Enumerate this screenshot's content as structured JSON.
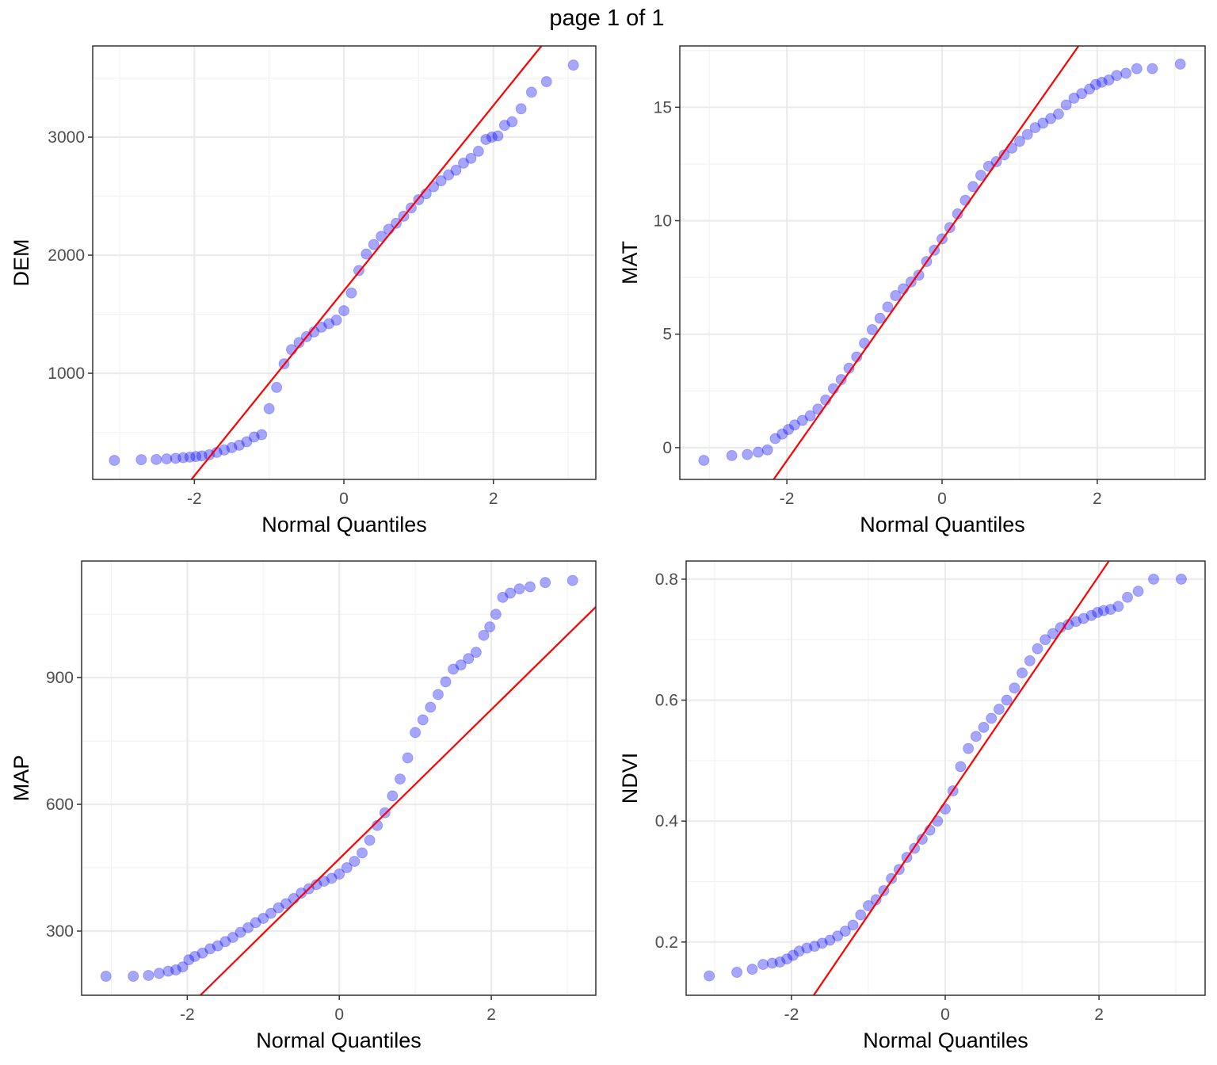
{
  "page_title": "page 1 of 1",
  "point_color": "#0000ff",
  "line_color": "#ff0000",
  "x_quantiles": [
    -3.07,
    -2.71,
    -2.51,
    -2.37,
    -2.25,
    -2.15,
    -2.06,
    -1.98,
    -1.9,
    -1.8,
    -1.7,
    -1.6,
    -1.5,
    -1.4,
    -1.3,
    -1.2,
    -1.1,
    -1.0,
    -0.9,
    -0.8,
    -0.7,
    -0.6,
    -0.5,
    -0.4,
    -0.3,
    -0.2,
    -0.1,
    0,
    0.1,
    0.2,
    0.3,
    0.4,
    0.5,
    0.6,
    0.7,
    0.8,
    0.9,
    1.0,
    1.1,
    1.2,
    1.3,
    1.4,
    1.5,
    1.6,
    1.7,
    1.8,
    1.9,
    1.98,
    2.06,
    2.15,
    2.25,
    2.37,
    2.51,
    2.71,
    3.07
  ],
  "chart_data": [
    {
      "type": "scatter",
      "xlabel": "Normal Quantiles",
      "ylabel": "DEM",
      "xlim": [
        -3.36,
        3.37
      ],
      "ylim": [
        101,
        3772
      ],
      "xticks": [
        "-2",
        "0",
        "2"
      ],
      "xtick_values": [
        -2,
        0,
        2
      ],
      "yticks": [
        "1000",
        "2000",
        "3000"
      ],
      "ytick_values": [
        1000,
        2000,
        3000
      ],
      "grid": true,
      "reference_line": {
        "intercept": 1700,
        "slope": 784
      },
      "y": [
        262,
        268,
        270,
        275,
        280,
        285,
        290,
        295,
        300,
        310,
        330,
        350,
        370,
        390,
        420,
        460,
        480,
        700,
        880,
        1080,
        1200,
        1260,
        1310,
        1350,
        1390,
        1420,
        1450,
        1530,
        1680,
        1870,
        2010,
        2090,
        2160,
        2220,
        2270,
        2330,
        2400,
        2470,
        2520,
        2580,
        2630,
        2680,
        2720,
        2780,
        2820,
        2880,
        2980,
        3000,
        3010,
        3100,
        3130,
        3240,
        3380,
        3470,
        3610
      ]
    },
    {
      "type": "scatter",
      "xlabel": "Normal Quantiles",
      "ylabel": "MAT",
      "xlim": [
        -3.38,
        3.39
      ],
      "ylim": [
        -1.4,
        17.7
      ],
      "xticks": [
        "-2",
        "0",
        "2"
      ],
      "xtick_values": [
        -2,
        0,
        2
      ],
      "yticks": [
        "0",
        "5",
        "10",
        "15"
      ],
      "ytick_values": [
        0,
        5,
        10,
        15
      ],
      "grid": true,
      "reference_line": {
        "intercept": 9.15,
        "slope": 4.86
      },
      "y": [
        -0.56,
        -0.35,
        -0.3,
        -0.2,
        -0.1,
        0.4,
        0.6,
        0.8,
        1.0,
        1.2,
        1.4,
        1.7,
        2.1,
        2.6,
        3.0,
        3.5,
        4.0,
        4.6,
        5.2,
        5.7,
        6.2,
        6.7,
        7.0,
        7.3,
        7.6,
        8.2,
        8.7,
        9.2,
        9.7,
        10.3,
        10.9,
        11.5,
        12.0,
        12.4,
        12.6,
        12.9,
        13.2,
        13.5,
        13.8,
        14.1,
        14.3,
        14.5,
        14.7,
        15.1,
        15.4,
        15.6,
        15.8,
        16.0,
        16.1,
        16.2,
        16.4,
        16.5,
        16.7,
        16.7,
        16.9
      ]
    },
    {
      "type": "scatter",
      "xlabel": "Normal Quantiles",
      "ylabel": "MAP",
      "xlim": [
        -3.39,
        3.375
      ],
      "ylim": [
        148,
        1176
      ],
      "xticks": [
        "-2",
        "0",
        "2"
      ],
      "xtick_values": [
        -2,
        0,
        2
      ],
      "yticks": [
        "300",
        "600",
        "900"
      ],
      "ytick_values": [
        300,
        600,
        900
      ],
      "grid": true,
      "reference_line": {
        "intercept": 471,
        "slope": 176.7
      },
      "y": [
        193,
        193,
        195,
        200,
        205,
        208,
        215,
        232,
        240,
        248,
        258,
        265,
        275,
        285,
        297,
        308,
        320,
        330,
        342,
        355,
        365,
        377,
        390,
        400,
        410,
        418,
        425,
        435,
        450,
        465,
        485,
        515,
        550,
        580,
        620,
        660,
        710,
        770,
        800,
        830,
        860,
        890,
        920,
        930,
        945,
        960,
        1000,
        1020,
        1050,
        1090,
        1100,
        1110,
        1115,
        1125,
        1130
      ]
    },
    {
      "type": "scatter",
      "xlabel": "Normal Quantiles",
      "ylabel": "NDVI",
      "xlim": [
        -3.37,
        3.38
      ],
      "ylim": [
        0.112,
        0.83
      ],
      "xticks": [
        "-2",
        "0",
        "2"
      ],
      "xtick_values": [
        -2,
        0,
        2
      ],
      "yticks": [
        "0.2",
        "0.4",
        "0.6",
        "0.8"
      ],
      "ytick_values": [
        0.2,
        0.4,
        0.6,
        0.8
      ],
      "grid": true,
      "reference_line": {
        "intercept": 0.432,
        "slope": 0.187
      },
      "y": [
        0.144,
        0.15,
        0.155,
        0.163,
        0.165,
        0.167,
        0.172,
        0.178,
        0.185,
        0.19,
        0.193,
        0.198,
        0.203,
        0.21,
        0.218,
        0.228,
        0.245,
        0.26,
        0.27,
        0.285,
        0.305,
        0.32,
        0.34,
        0.355,
        0.37,
        0.385,
        0.4,
        0.42,
        0.45,
        0.49,
        0.52,
        0.54,
        0.555,
        0.57,
        0.585,
        0.6,
        0.62,
        0.645,
        0.665,
        0.685,
        0.7,
        0.71,
        0.72,
        0.725,
        0.73,
        0.735,
        0.74,
        0.745,
        0.748,
        0.75,
        0.755,
        0.77,
        0.78,
        0.8,
        0.8
      ]
    }
  ]
}
